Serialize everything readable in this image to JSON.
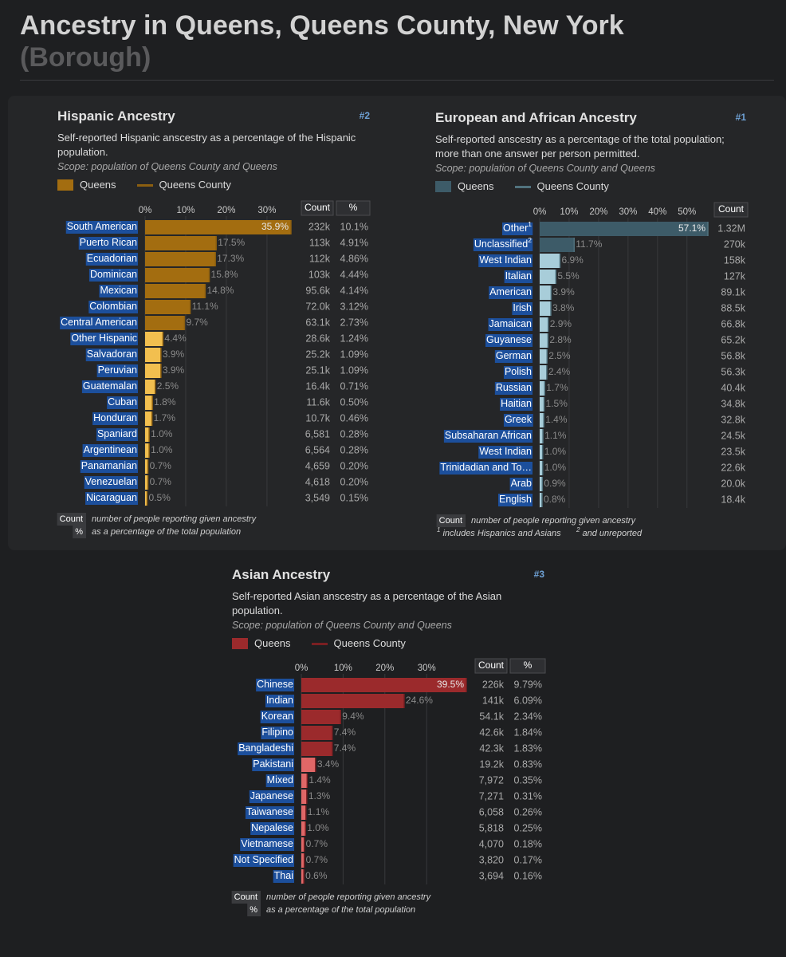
{
  "page_title": "Ancestry in Queens, Queens County, New York",
  "page_subtitle": "(Borough)",
  "chart_data": [
    {
      "type": "bar",
      "orientation": "horizontal",
      "title": "Hispanic Ancestry",
      "rank": "#2",
      "subtitle": "Self-reported Hispanic anscestry as a percentage of the Hispanic population.",
      "scope": "Scope: population of Queens County and Queens",
      "categories": [
        "South American",
        "Puerto Rican",
        "Ecuadorian",
        "Dominican",
        "Mexican",
        "Colombian",
        "Central American",
        "Other Hispanic",
        "Salvadoran",
        "Peruvian",
        "Guatemalan",
        "Cuban",
        "Honduran",
        "Spaniard",
        "Argentinean",
        "Panamanian",
        "Venezuelan",
        "Nicaraguan"
      ],
      "series": [
        {
          "name": "Queens",
          "color": "#a36d10",
          "colors": [
            "#a36d10",
            "#a36d10",
            "#a36d10",
            "#a36d10",
            "#a36d10",
            "#a36d10",
            "#a36d10",
            "#f2bf4f",
            "#f2bf4f",
            "#f2bf4f",
            "#f2bf4f",
            "#f2bf4f",
            "#f2bf4f",
            "#f2bf4f",
            "#f2bf4f",
            "#f2bf4f",
            "#f2bf4f",
            "#f2bf4f"
          ],
          "values": [
            35.9,
            17.5,
            17.3,
            15.8,
            14.8,
            11.1,
            9.7,
            4.4,
            3.9,
            3.9,
            2.5,
            1.8,
            1.7,
            1.0,
            1.0,
            0.7,
            0.7,
            0.5
          ],
          "value_labels": [
            "35.9%",
            "17.5%",
            "17.3%",
            "15.8%",
            "14.8%",
            "11.1%",
            "9.7%",
            "4.4%",
            "3.9%",
            "3.9%",
            "2.5%",
            "1.8%",
            "1.7%",
            "1.0%",
            "1.0%",
            "0.7%",
            "0.7%",
            "0.5%"
          ]
        },
        {
          "name": "Queens County",
          "color": "#8c5f10",
          "values": [
            35.9,
            17.5,
            17.3,
            15.8,
            14.8,
            11.1,
            9.7,
            4.4,
            3.9,
            3.9,
            2.5,
            1.8,
            1.7,
            1.0,
            1.0,
            0.7,
            0.7,
            0.5
          ]
        }
      ],
      "xlim": [
        0,
        35.9
      ],
      "xticks": [
        {
          "value": 0,
          "label": "0%"
        },
        {
          "value": 10,
          "label": "10%"
        },
        {
          "value": 20,
          "label": "20%"
        },
        {
          "value": 30,
          "label": "30%"
        }
      ],
      "grid": true,
      "count_header": "Count",
      "counts": [
        "232k",
        "113k",
        "112k",
        "103k",
        "95.6k",
        "72.0k",
        "63.1k",
        "28.6k",
        "25.2k",
        "25.1k",
        "16.4k",
        "11.6k",
        "10.7k",
        "6,581",
        "6,564",
        "4,659",
        "4,618",
        "3,549"
      ],
      "percent_header": "%",
      "percents": [
        "10.1%",
        "4.91%",
        "4.86%",
        "4.44%",
        "4.14%",
        "3.12%",
        "2.73%",
        "1.24%",
        "1.09%",
        "1.09%",
        "0.71%",
        "0.50%",
        "0.46%",
        "0.28%",
        "0.28%",
        "0.20%",
        "0.20%",
        "0.15%"
      ],
      "notes": [
        {
          "key": "Count",
          "text": "number of people reporting given ancestry"
        },
        {
          "key": "%",
          "text": "as a percentage of the total population"
        }
      ]
    },
    {
      "type": "bar",
      "orientation": "horizontal",
      "title": "European and African Ancestry",
      "rank": "#1",
      "subtitle": "Self-reported anscestry as a percentage of the total population; more than one answer per person permitted.",
      "scope": "Scope: population of Queens County and Queens",
      "categories": [
        "Other",
        "Unclassified",
        "West Indian",
        "Italian",
        "American",
        "Irish",
        "Jamaican",
        "Guyanese",
        "German",
        "Polish",
        "Russian",
        "Haitian",
        "Greek",
        "Subsaharan African",
        "West Indian",
        "Trinidadian and To…",
        "Arab",
        "English"
      ],
      "category_marks": [
        "1",
        "2",
        null,
        null,
        null,
        null,
        null,
        null,
        null,
        null,
        null,
        null,
        null,
        null,
        null,
        null,
        null,
        null
      ],
      "series": [
        {
          "name": "Queens",
          "color": "#3d5b68",
          "colors": [
            "#3d5b68",
            "#3d5b68",
            "#a8cdd9",
            "#a8cdd9",
            "#a8cdd9",
            "#a8cdd9",
            "#a8cdd9",
            "#a8cdd9",
            "#a8cdd9",
            "#a8cdd9",
            "#a8cdd9",
            "#a8cdd9",
            "#a8cdd9",
            "#a8cdd9",
            "#a8cdd9",
            "#a8cdd9",
            "#a8cdd9",
            "#a8cdd9"
          ],
          "values": [
            57.1,
            11.7,
            6.9,
            5.5,
            3.9,
            3.8,
            2.9,
            2.8,
            2.5,
            2.4,
            1.7,
            1.5,
            1.4,
            1.1,
            1.0,
            1.0,
            0.9,
            0.8
          ],
          "value_labels": [
            "57.1%",
            "11.7%",
            "6.9%",
            "5.5%",
            "3.9%",
            "3.8%",
            "2.9%",
            "2.8%",
            "2.5%",
            "2.4%",
            "1.7%",
            "1.5%",
            "1.4%",
            "1.1%",
            "1.0%",
            "1.0%",
            "0.9%",
            "0.8%"
          ]
        },
        {
          "name": "Queens County",
          "color": "#51727e",
          "values": [
            57.1,
            11.7,
            6.9,
            5.5,
            3.9,
            3.8,
            2.9,
            2.8,
            2.5,
            2.4,
            1.7,
            1.5,
            1.4,
            1.1,
            1.0,
            1.0,
            0.9,
            0.8
          ]
        }
      ],
      "xlim": [
        0,
        57.1
      ],
      "xticks": [
        {
          "value": 0,
          "label": "0%"
        },
        {
          "value": 10,
          "label": "10%"
        },
        {
          "value": 20,
          "label": "20%"
        },
        {
          "value": 30,
          "label": "30%"
        },
        {
          "value": 40,
          "label": "40%"
        },
        {
          "value": 50,
          "label": "50%"
        }
      ],
      "grid": true,
      "count_header": "Count",
      "counts": [
        "1.32M",
        "270k",
        "158k",
        "127k",
        "89.1k",
        "88.5k",
        "66.8k",
        "65.2k",
        "56.8k",
        "56.3k",
        "40.4k",
        "34.8k",
        "32.8k",
        "24.5k",
        "23.5k",
        "22.6k",
        "20.0k",
        "18.4k"
      ],
      "notes": [
        {
          "key": "Count",
          "text": "number of people reporting given ancestry"
        }
      ],
      "footnotes": [
        {
          "mark": "1",
          "text": "includes Hispanics and Asians"
        },
        {
          "mark": "2",
          "text": "and unreported"
        }
      ]
    },
    {
      "type": "bar",
      "orientation": "horizontal",
      "title": "Asian Ancestry",
      "rank": "#3",
      "subtitle": "Self-reported Asian anscestry as a percentage of the Asian population.",
      "scope": "Scope: population of Queens County and Queens",
      "categories": [
        "Chinese",
        "Indian",
        "Korean",
        "Filipino",
        "Bangladeshi",
        "Pakistani",
        "Mixed",
        "Japanese",
        "Taiwanese",
        "Nepalese",
        "Vietnamese",
        "Not Specified",
        "Thai"
      ],
      "series": [
        {
          "name": "Queens",
          "color": "#9b2a2c",
          "colors": [
            "#9b2a2c",
            "#9b2a2c",
            "#9b2a2c",
            "#9b2a2c",
            "#9b2a2c",
            "#e06767",
            "#e06767",
            "#e06767",
            "#e06767",
            "#e06767",
            "#e06767",
            "#e06767",
            "#e06767"
          ],
          "values": [
            39.5,
            24.6,
            9.4,
            7.4,
            7.4,
            3.4,
            1.4,
            1.3,
            1.1,
            1.0,
            0.7,
            0.7,
            0.6
          ],
          "value_labels": [
            "39.5%",
            "24.6%",
            "9.4%",
            "7.4%",
            "7.4%",
            "3.4%",
            "1.4%",
            "1.3%",
            "1.1%",
            "1.0%",
            "0.7%",
            "0.7%",
            "0.6%"
          ]
        },
        {
          "name": "Queens County",
          "color": "#7a1f22",
          "values": [
            39.5,
            24.6,
            9.4,
            7.4,
            7.4,
            3.4,
            1.4,
            1.3,
            1.1,
            1.0,
            0.7,
            0.7,
            0.6
          ]
        }
      ],
      "xlim": [
        0,
        39.5
      ],
      "xticks": [
        {
          "value": 0,
          "label": "0%"
        },
        {
          "value": 10,
          "label": "10%"
        },
        {
          "value": 20,
          "label": "20%"
        },
        {
          "value": 30,
          "label": "30%"
        }
      ],
      "grid": true,
      "count_header": "Count",
      "counts": [
        "226k",
        "141k",
        "54.1k",
        "42.6k",
        "42.3k",
        "19.2k",
        "7,972",
        "7,271",
        "6,058",
        "5,818",
        "4,070",
        "3,820",
        "3,694"
      ],
      "percent_header": "%",
      "percents": [
        "9.79%",
        "6.09%",
        "2.34%",
        "1.84%",
        "1.83%",
        "0.83%",
        "0.35%",
        "0.31%",
        "0.26%",
        "0.25%",
        "0.18%",
        "0.17%",
        "0.16%"
      ],
      "notes": [
        {
          "key": "Count",
          "text": "number of people reporting given ancestry"
        },
        {
          "key": "%",
          "text": "as a percentage of the total population"
        }
      ]
    }
  ]
}
